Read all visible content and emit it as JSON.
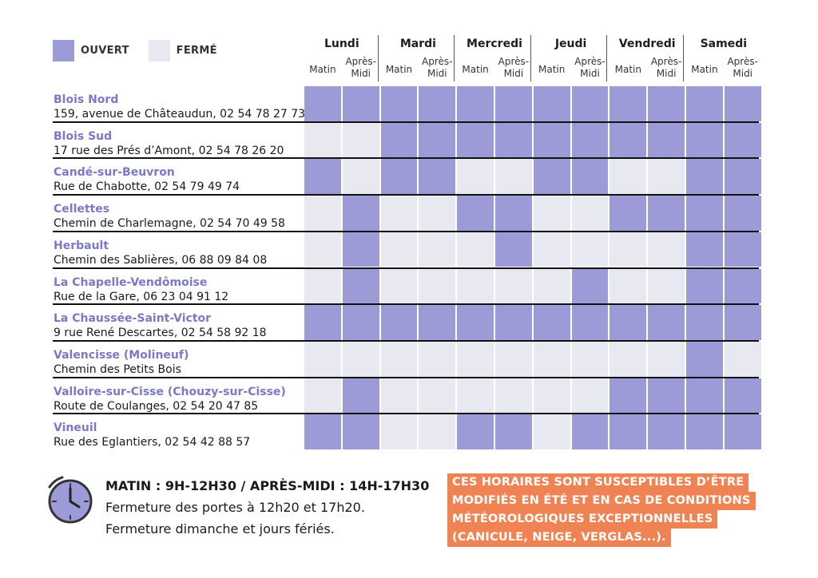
{
  "legend": {
    "open": {
      "label": "OUVERT",
      "color": "#9c9bd8"
    },
    "closed": {
      "label": "FERMÉ",
      "color": "#e8e8f1"
    }
  },
  "schedule": {
    "days": [
      {
        "label": "Lundi",
        "slots": [
          "Matin",
          "Après-\nMidi"
        ]
      },
      {
        "label": "Mardi",
        "slots": [
          "Matin",
          "Après-\nMidi"
        ]
      },
      {
        "label": "Mercredi",
        "slots": [
          "Matin",
          "Après-\nMidi"
        ]
      },
      {
        "label": "Jeudi",
        "slots": [
          "Matin",
          "Après-\nMidi"
        ]
      },
      {
        "label": "Vendredi",
        "slots": [
          "Matin",
          "Après-\nMidi"
        ]
      },
      {
        "label": "Samedi",
        "slots": [
          "Matin",
          "Après-\nMidi"
        ]
      }
    ],
    "rows": [
      {
        "name": "Blois Nord",
        "address": "159, avenue de Châteaudun, 02 54 78 27 73",
        "open": [
          1,
          1,
          1,
          1,
          1,
          1,
          1,
          1,
          1,
          1,
          1,
          1
        ]
      },
      {
        "name": "Blois Sud",
        "address": "17 rue des Prés d’Amont, 02 54 78 26 20",
        "open": [
          0,
          0,
          1,
          1,
          1,
          1,
          1,
          1,
          1,
          1,
          1,
          1
        ]
      },
      {
        "name": "Candé-sur-Beuvron",
        "address": "Rue de Chabotte, 02 54 79 49 74",
        "open": [
          1,
          0,
          1,
          1,
          0,
          0,
          1,
          1,
          0,
          0,
          1,
          1
        ]
      },
      {
        "name": "Cellettes",
        "address": "Chemin de Charlemagne, 02 54 70 49 58",
        "open": [
          0,
          1,
          0,
          0,
          1,
          1,
          0,
          0,
          1,
          1,
          1,
          1
        ]
      },
      {
        "name": "Herbault",
        "address": "Chemin des Sablières, 06 88 09 84 08",
        "open": [
          0,
          1,
          0,
          0,
          0,
          1,
          0,
          0,
          0,
          0,
          1,
          1
        ]
      },
      {
        "name": "La Chapelle-Vendômoise",
        "address": "Rue de la Gare, 06 23 04 91 12",
        "open": [
          0,
          1,
          0,
          0,
          0,
          0,
          0,
          1,
          0,
          0,
          1,
          1
        ]
      },
      {
        "name": "La Chaussée-Saint-Victor",
        "address": "9 rue René Descartes, 02 54 58 92 18",
        "open": [
          1,
          1,
          1,
          1,
          1,
          1,
          1,
          1,
          1,
          1,
          1,
          1
        ]
      },
      {
        "name": "Valencisse (Molineuf)",
        "address": "Chemin des Petits Bois",
        "open": [
          0,
          0,
          0,
          0,
          0,
          0,
          0,
          0,
          0,
          0,
          1,
          0
        ]
      },
      {
        "name": "Valloire-sur-Cisse (Chouzy-sur-Cisse)",
        "address": "Route de Coulanges, 02 54 20 47 85",
        "open": [
          0,
          1,
          0,
          0,
          0,
          0,
          0,
          0,
          1,
          1,
          1,
          1
        ]
      },
      {
        "name": "Vineuil",
        "address": "Rue des Eglantiers, 02 54 42 88 57",
        "open": [
          1,
          1,
          0,
          0,
          1,
          1,
          0,
          1,
          1,
          1,
          1,
          1
        ]
      }
    ]
  },
  "footer": {
    "icon": "clock-icon",
    "hours": "MATIN : 9H-12H30  / APRÈS-MIDI : 14H-17H30",
    "note1": "Fermeture des portes  à 12h20 et 17h20.",
    "note2": "Fermeture dimanche et jours fériés.",
    "warning": [
      "CES HORAIRES SONT SUSCEPTIBLES D’ÊTRE",
      "MODIFIÉS EN ÉTÉ ET EN CAS DE CONDITIONS",
      "MÉTÉOROLOGIQUES EXCEPTIONNELLES",
      "(CANICULE, NEIGE, VERGLAS...)."
    ],
    "warning_color": "#ef8354",
    "clock_color": "#9c9bd8"
  }
}
